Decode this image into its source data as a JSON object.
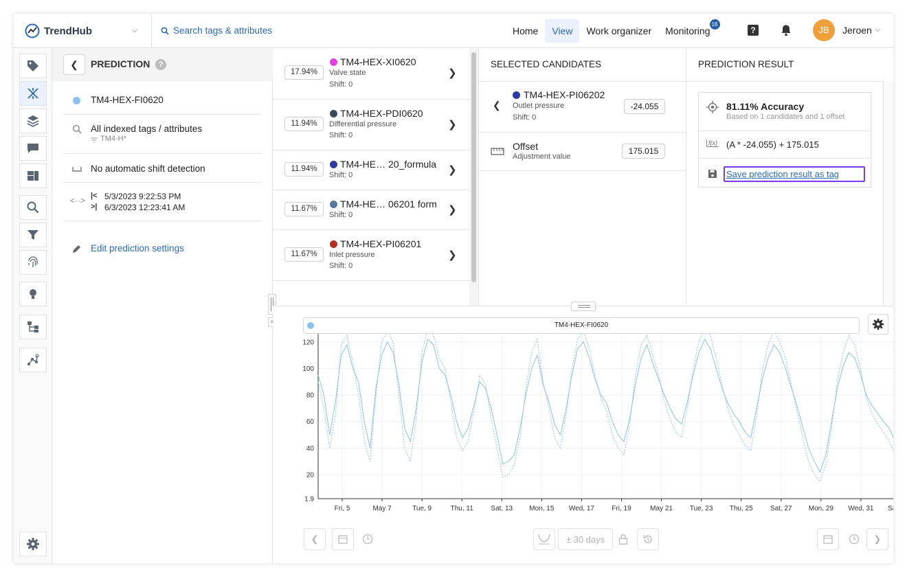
{
  "header": {
    "logo": "TrendHub",
    "search_label": "Search tags & attributes",
    "nav": [
      {
        "label": "Home"
      },
      {
        "label": "View"
      },
      {
        "label": "Work organizer"
      },
      {
        "label": "Monitoring",
        "badge": "16"
      }
    ],
    "help_glyph": "?",
    "user_initials": "JB",
    "user_name": "Jeroen"
  },
  "sidebar_icons": [
    "tag-icon",
    "prediction-icon",
    "layers-icon",
    "comment-icon",
    "dashboard-icon",
    "search-icon",
    "filter-icon",
    "fingerprint-icon",
    "lightbulb-icon",
    "hierarchy-icon",
    "graph-icon",
    "gear-icon"
  ],
  "prediction": {
    "title": "PREDICTION",
    "target_tag": "TM4-HEX-FI0620",
    "search_scope": "All indexed tags / attributes",
    "search_filter": "TM4-H*",
    "shift_detection": "No automatic shift detection",
    "range_start": "5/3/2023 9:22:53 PM",
    "range_end": "6/3/2023 12:23:41 AM",
    "edit_label": "Edit prediction settings"
  },
  "candidates": [
    {
      "pct": "17.94%",
      "name": "TM4-HEX-XI0620",
      "desc": "Valve state",
      "shift": "Shift: 0",
      "color": "#e040e0"
    },
    {
      "pct": "11.94%",
      "name": "TM4-HEX-PDI0620",
      "desc": "Differential pressure",
      "shift": "Shift: 0",
      "color": "#3d4a56"
    },
    {
      "pct": "11.94%",
      "name": "TM4-HE…  20_formula",
      "desc": "",
      "shift": "Shift: 0",
      "color": "#2f3aa0"
    },
    {
      "pct": "11.67%",
      "name": "TM4-HE…  06201 form",
      "desc": "",
      "shift": "Shift: 0",
      "color": "#5a7898"
    },
    {
      "pct": "11.67%",
      "name": "TM4-HEX-PI06201",
      "desc": "Inlet pressure",
      "shift": "Shift: 0",
      "color": "#b53020"
    }
  ],
  "selected": {
    "title": "SELECTED CANDIDATES",
    "item": {
      "name": "TM4-HEX-PI06202",
      "desc": "Outlet pressure",
      "shift": "Shift: 0",
      "value": "-24.055",
      "color": "#2f3aa0"
    },
    "offset": {
      "name": "Offset",
      "desc": "Adjustment value",
      "value": "175.015"
    }
  },
  "result": {
    "title": "PREDICTION RESULT",
    "accuracy": "81.11% Accuracy",
    "accuracy_sub": "Based on 1 candidates and 1 offset",
    "fx_label": "f(x)",
    "formula": "(A * -24.055) + 175.015",
    "save_label": "Save prediction result as tag"
  },
  "chart_data": {
    "type": "line",
    "title": "TM4-HEX-FI0620",
    "ylim": [
      1.9,
      131.8
    ],
    "y_ticks": [
      "131.8",
      "120",
      "100",
      "80",
      "60",
      "40",
      "20",
      "1.9"
    ],
    "x_ticks": [
      "Fri, 5",
      "May 7",
      "Tue, 9",
      "Thu, 11",
      "Sat, 13",
      "Mon, 15",
      "Wed, 17",
      "Fri, 19",
      "May 21",
      "Tue, 23",
      "Thu, 25",
      "Sat, 27",
      "Mon, 29",
      "Wed, 31",
      "Sat"
    ],
    "series": [
      {
        "name": "TM4-HEX-FI0620",
        "style": "solid",
        "color": "#8cc0f0",
        "values": [
          95,
          80,
          50,
          75,
          110,
          118,
          100,
          90,
          60,
          40,
          85,
          110,
          120,
          112,
          88,
          55,
          45,
          70,
          105,
          122,
          118,
          100,
          95,
          80,
          60,
          48,
          55,
          72,
          90,
          85,
          70,
          50,
          28,
          30,
          35,
          55,
          80,
          100,
          110,
          88,
          75,
          58,
          50,
          70,
          95,
          115,
          120,
          108,
          92,
          80,
          74,
          60,
          50,
          45,
          62,
          88,
          108,
          118,
          104,
          92,
          80,
          70,
          62,
          58,
          75,
          95,
          112,
          122,
          115,
          100,
          85,
          74,
          66,
          60,
          52,
          48,
          70,
          92,
          108,
          118,
          112,
          100,
          86,
          72,
          56,
          40,
          30,
          22,
          35,
          60,
          85,
          102,
          112,
          108,
          96,
          80,
          72,
          66,
          60,
          55,
          45,
          30
        ]
      },
      {
        "name": "Prediction",
        "style": "dashed",
        "color": "#8cc0f0",
        "values": [
          90,
          70,
          40,
          65,
          118,
          125,
          105,
          80,
          45,
          30,
          80,
          120,
          128,
          120,
          80,
          40,
          30,
          62,
          112,
          130,
          125,
          108,
          100,
          75,
          48,
          38,
          45,
          68,
          95,
          88,
          62,
          40,
          18,
          20,
          28,
          48,
          85,
          112,
          122,
          90,
          70,
          48,
          40,
          65,
          100,
          122,
          128,
          115,
          95,
          78,
          68,
          50,
          40,
          35,
          58,
          95,
          118,
          125,
          110,
          95,
          75,
          62,
          52,
          48,
          70,
          100,
          120,
          130,
          125,
          108,
          88,
          70,
          58,
          50,
          42,
          38,
          65,
          98,
          118,
          128,
          120,
          108,
          88,
          68,
          48,
          30,
          20,
          15,
          28,
          55,
          90,
          112,
          125,
          118,
          100,
          78,
          66,
          58,
          52,
          45,
          35,
          22
        ]
      }
    ]
  },
  "chart_toolbar": {
    "range_label": "± 30 days"
  }
}
